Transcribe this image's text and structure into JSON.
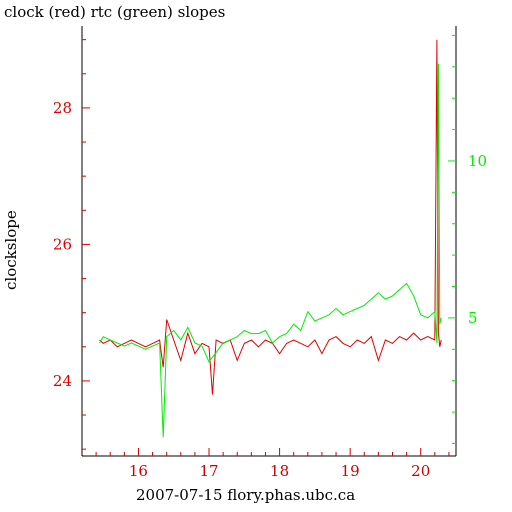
{
  "title": "clock (red) rtc (green) slopes",
  "xlabel": "2007-07-15 flory.phas.ubc.ca",
  "ylabel": "clockslope",
  "colors": {
    "clock": "#e00000",
    "rtc": "#00ee00",
    "axis": "#000000",
    "xtick": "#d00000"
  },
  "chart_data": {
    "type": "line",
    "xlim": [
      15.2,
      20.5
    ],
    "ylim_left": [
      22.9,
      29.2
    ],
    "ylim_right": [
      0.6,
      14.3
    ],
    "x_ticks": [
      16,
      17,
      18,
      19,
      20
    ],
    "y_ticks_left": [
      24,
      26,
      28
    ],
    "y_ticks_right": [
      5,
      10
    ],
    "series": [
      {
        "name": "clock",
        "axis": "left",
        "color": "#e00000",
        "x": [
          15.45,
          15.5,
          15.6,
          15.7,
          15.8,
          15.9,
          16.0,
          16.1,
          16.2,
          16.3,
          16.35,
          16.4,
          16.5,
          16.6,
          16.7,
          16.8,
          16.9,
          17.0,
          17.05,
          17.1,
          17.2,
          17.3,
          17.4,
          17.5,
          17.6,
          17.7,
          17.8,
          17.9,
          18.0,
          18.1,
          18.2,
          18.3,
          18.4,
          18.5,
          18.6,
          18.7,
          18.8,
          18.9,
          19.0,
          19.1,
          19.2,
          19.3,
          19.4,
          19.5,
          19.6,
          19.7,
          19.8,
          19.9,
          20.0,
          20.1,
          20.2,
          20.23,
          20.25,
          20.27,
          20.29
        ],
        "y": [
          24.6,
          24.55,
          24.6,
          24.5,
          24.55,
          24.6,
          24.55,
          24.5,
          24.55,
          24.6,
          24.2,
          24.9,
          24.6,
          24.3,
          24.7,
          24.4,
          24.55,
          24.5,
          23.8,
          24.6,
          24.55,
          24.6,
          24.3,
          24.55,
          24.6,
          24.5,
          24.6,
          24.55,
          24.4,
          24.55,
          24.6,
          24.55,
          24.5,
          24.6,
          24.4,
          24.6,
          24.65,
          24.55,
          24.5,
          24.6,
          24.55,
          24.65,
          24.3,
          24.6,
          24.55,
          24.65,
          24.6,
          24.7,
          24.6,
          24.65,
          24.6,
          29.0,
          24.7,
          24.5,
          24.6
        ]
      },
      {
        "name": "rtc",
        "axis": "right",
        "color": "#00ee00",
        "x": [
          15.45,
          15.5,
          15.6,
          15.7,
          15.8,
          15.9,
          16.0,
          16.1,
          16.2,
          16.3,
          16.35,
          16.4,
          16.5,
          16.6,
          16.7,
          16.8,
          16.9,
          17.0,
          17.1,
          17.2,
          17.3,
          17.4,
          17.5,
          17.6,
          17.7,
          17.8,
          17.9,
          18.0,
          18.1,
          18.2,
          18.3,
          18.4,
          18.5,
          18.6,
          18.7,
          18.8,
          18.9,
          19.0,
          19.1,
          19.2,
          19.3,
          19.4,
          19.5,
          19.6,
          19.7,
          19.8,
          19.9,
          20.0,
          20.1,
          20.2,
          20.23,
          20.25,
          20.27,
          20.29
        ],
        "y": [
          4.2,
          4.4,
          4.3,
          4.2,
          4.1,
          4.2,
          4.1,
          4.0,
          4.1,
          4.2,
          1.2,
          4.4,
          4.6,
          4.3,
          4.7,
          4.2,
          4.1,
          3.6,
          3.9,
          4.2,
          4.3,
          4.4,
          4.6,
          4.5,
          4.5,
          4.6,
          4.2,
          4.4,
          4.5,
          4.8,
          4.6,
          5.2,
          4.9,
          5.0,
          5.1,
          5.3,
          5.1,
          5.2,
          5.3,
          5.4,
          5.6,
          5.8,
          5.6,
          5.7,
          5.9,
          6.1,
          5.7,
          5.1,
          5.0,
          5.2,
          4.2,
          13.1,
          4.8,
          5.0
        ]
      }
    ]
  }
}
